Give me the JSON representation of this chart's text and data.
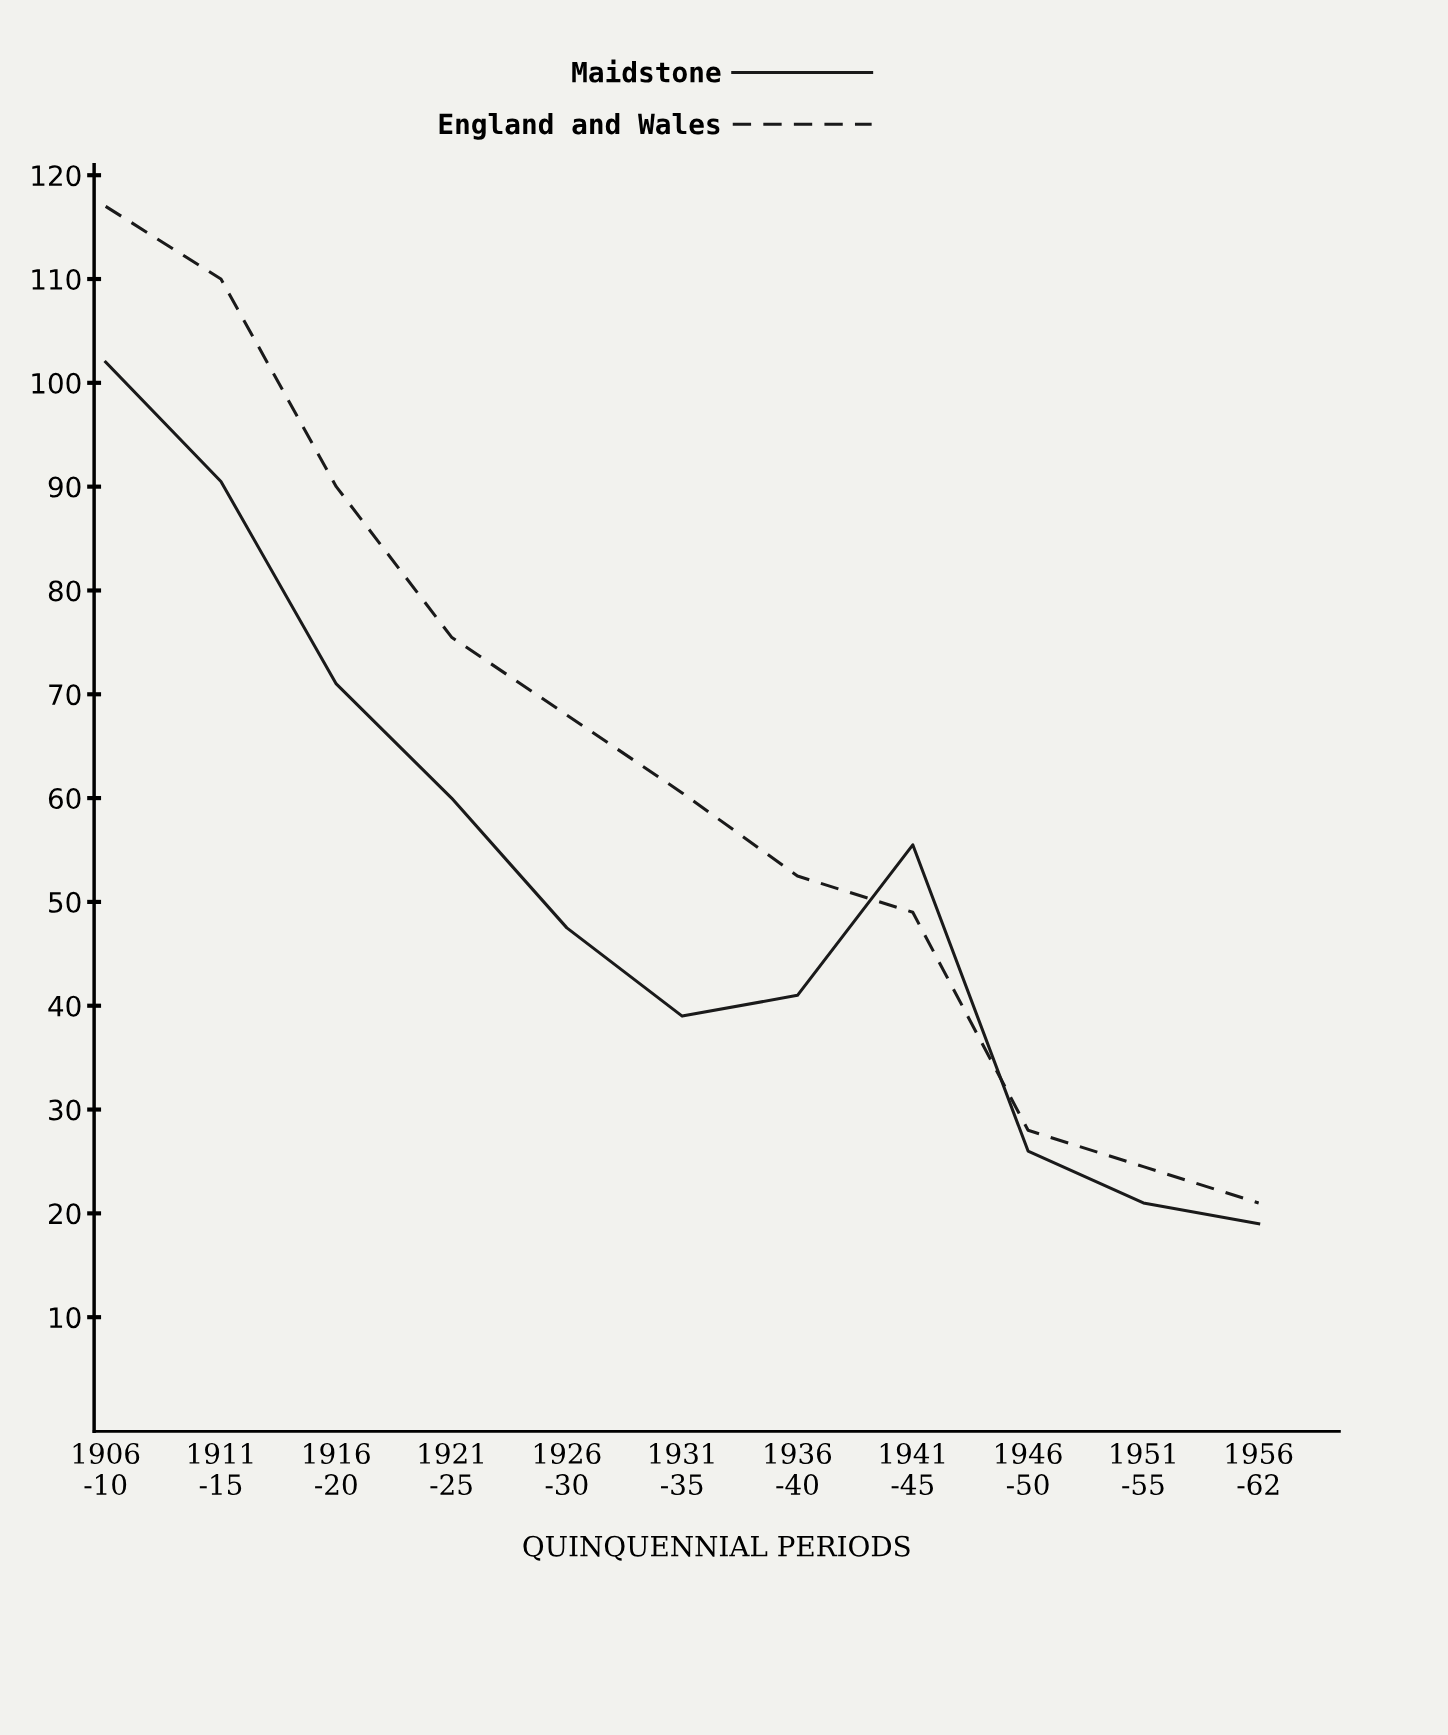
{
  "chart_data": {
    "type": "line",
    "categories": [
      "1906\n-10",
      "1911\n-15",
      "1916\n-20",
      "1921\n-25",
      "1926\n-30",
      "1931\n-35",
      "1936\n-40",
      "1941\n-45",
      "1946\n-50",
      "1951\n-55",
      "1956\n-62"
    ],
    "series": [
      {
        "name": "Maidstone",
        "color": "#1a1a1a",
        "line_style": "solid",
        "values": [
          102,
          90.5,
          71,
          60,
          47.5,
          39,
          41,
          55.5,
          26,
          21,
          19
        ]
      },
      {
        "name": "England and Wales",
        "color": "#1a1a1a",
        "line_style": "dashed",
        "values": [
          117,
          110,
          90,
          75.5,
          68,
          60.5,
          52.5,
          49,
          28,
          24.5,
          21
        ]
      }
    ],
    "xlabel": "QUINQUENNIAL PERIODS",
    "ylim": [
      -1,
      121
    ],
    "yticks": [
      10,
      20,
      30,
      40,
      50,
      60,
      70,
      80,
      90,
      100,
      110,
      120
    ],
    "grid": false,
    "legend": "top",
    "marker": "none"
  }
}
